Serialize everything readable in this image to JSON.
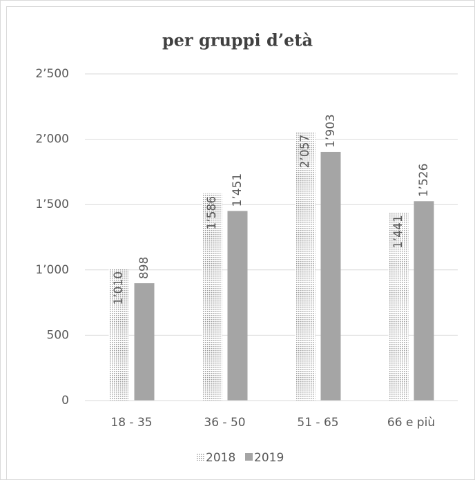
{
  "chart_data": {
    "type": "bar",
    "title": "per gruppi d’età",
    "categories": [
      "18 - 35",
      "36 - 50",
      "51 - 65",
      "66 e più"
    ],
    "series": [
      {
        "name": "2018",
        "color": "#9a9a9a",
        "values": [
          1010,
          1586,
          2057,
          1441
        ],
        "value_labels": [
          "1’010",
          "1’586",
          "2’057",
          "1’441"
        ]
      },
      {
        "name": "2019",
        "color": "#a5a5a5",
        "values": [
          898,
          1451,
          1903,
          1526
        ],
        "value_labels": [
          "898",
          "1’451",
          "1’903",
          "1’526"
        ]
      }
    ],
    "ylim": [
      0,
      2500
    ],
    "yticks": [
      0,
      500,
      {
        "value": 1000,
        "label": "1’000"
      },
      {
        "value": 1500,
        "label": "1’500"
      },
      {
        "value": 2000,
        "label": "2’000"
      },
      {
        "value": 2500,
        "label": "2’500"
      }
    ],
    "grid": true
  }
}
